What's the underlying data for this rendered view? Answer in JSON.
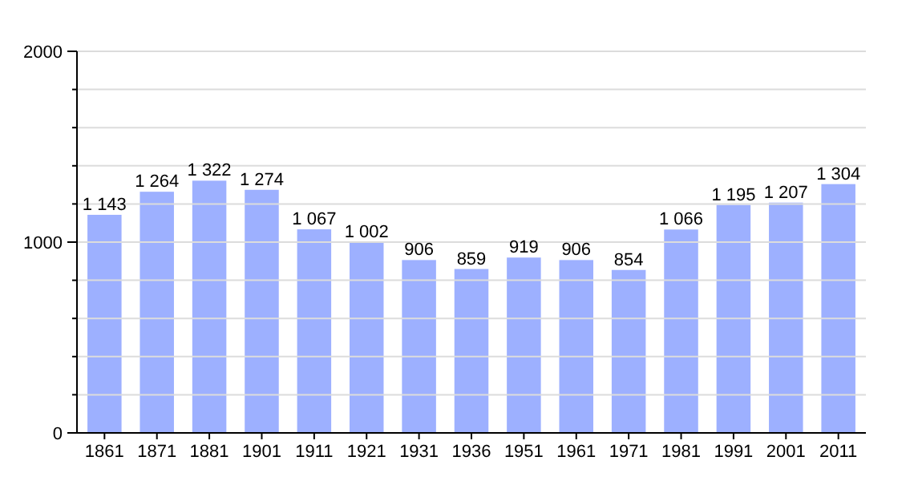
{
  "chart_data": {
    "type": "bar",
    "categories": [
      "1861",
      "1871",
      "1881",
      "1901",
      "1911",
      "1921",
      "1931",
      "1936",
      "1951",
      "1961",
      "1971",
      "1981",
      "1991",
      "2001",
      "2011"
    ],
    "values": [
      1143,
      1264,
      1322,
      1274,
      1067,
      1002,
      906,
      859,
      919,
      906,
      854,
      1066,
      1195,
      1207,
      1304
    ],
    "value_labels": [
      "1 143",
      "1 264",
      "1 322",
      "1 274",
      "1 067",
      "1 002",
      "906",
      "859",
      "919",
      "906",
      "854",
      "1 066",
      "1 195",
      "1 207",
      "1 304"
    ],
    "color": "#9db0ff",
    "ylim": [
      0,
      2000
    ],
    "yticks": [
      0,
      {
        "value": 200,
        "label": null
      },
      {
        "value": 400,
        "label": null
      },
      {
        "value": 600,
        "label": null
      },
      {
        "value": 800,
        "label": null
      },
      1000,
      {
        "value": 1200,
        "label": null
      },
      {
        "value": 1400,
        "label": null
      },
      {
        "value": 1600,
        "label": null
      },
      {
        "value": 1800,
        "label": null
      },
      2000
    ],
    "grid": true
  }
}
